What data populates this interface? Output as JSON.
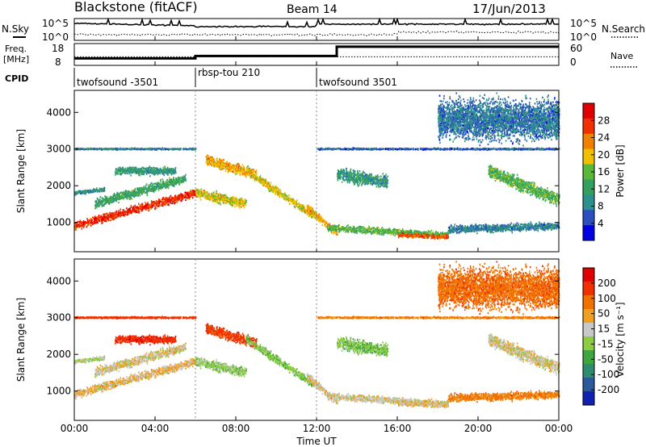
{
  "header": {
    "title": "Blackstone (fitACF)",
    "beam": "Beam 14",
    "date": "17/Jun/2013"
  },
  "top_panels": {
    "nsky_label": "N.Sky",
    "nsky_ticks": [
      "10^5",
      "10^0"
    ],
    "nsearch_label": "N.Search",
    "nsearch_ticks": [
      "10^5",
      "10^0"
    ],
    "freq_label": "Freq.",
    "freq_unit": "[MHz]",
    "freq_ticks": [
      "18",
      "8"
    ],
    "nave_label": "Nave",
    "nave_ticks": [
      "60",
      "0"
    ],
    "cpid_label": "CPID",
    "cpid_segments": [
      {
        "label": "twofsound -3501",
        "start_hour": 0,
        "end_hour": 6
      },
      {
        "label": "rbsp-tou 210",
        "start_hour": 6,
        "end_hour": 12
      },
      {
        "label": "twofsound 3501",
        "start_hour": 12,
        "end_hour": 24
      }
    ]
  },
  "xaxis": {
    "label": "Time UT",
    "ticks": [
      "00:00",
      "04:00",
      "08:00",
      "12:00",
      "16:00",
      "20:00",
      "00:00"
    ]
  },
  "power_panel": {
    "ylabel": "Slant Range [km]",
    "colorbar_label": "Power [dB]",
    "colorbar_ticks": [
      "28",
      "24",
      "20",
      "16",
      "12",
      "8",
      "4"
    ],
    "colors": [
      "#0000e0",
      "#2a50c0",
      "#2f8f8f",
      "#33a060",
      "#58b83a",
      "#f0c000",
      "#f08000",
      "#f03000",
      "#e00000"
    ]
  },
  "velocity_panel": {
    "ylabel": "Slant Range [km]",
    "colorbar_label": "Velocity [m s⁻¹]",
    "colorbar_ticks": [
      "200",
      "100",
      "50",
      "15",
      "-15",
      "-50",
      "-100",
      "-200"
    ],
    "colors": [
      "#1020b0",
      "#2d5a9a",
      "#2f8c70",
      "#3fa53f",
      "#8ccc40",
      "#c8c8c8",
      "#f0a020",
      "#f07000",
      "#f03000",
      "#e00000"
    ]
  },
  "chart_data": {
    "type": "heatmap",
    "title": "Blackstone (fitACF)",
    "x_unit": "hours UT",
    "xlim": [
      0,
      24
    ],
    "ylim": [
      200,
      4600
    ],
    "yticks": [
      1000,
      2000,
      3000,
      4000
    ],
    "ylabel": "Slant Range [km]",
    "xlabel": "Time UT",
    "power_range_dB": [
      0,
      30
    ],
    "velocity_range": [
      -250,
      250
    ],
    "scatter_features": [
      {
        "t_start": 0.0,
        "t_end": 6.0,
        "r_start": 900,
        "r_end": 1800,
        "thickness": 300,
        "power": 26,
        "velocity": -20
      },
      {
        "t_start": 0.0,
        "t_end": 1.5,
        "r_start": 1800,
        "r_end": 1900,
        "thickness": 150,
        "power": 9,
        "velocity": 15
      },
      {
        "t_start": 1.0,
        "t_end": 5.5,
        "r_start": 1500,
        "r_end": 2200,
        "thickness": 350,
        "power": 12,
        "velocity": -5
      },
      {
        "t_start": 6.0,
        "t_end": 8.5,
        "r_start": 1800,
        "r_end": 1500,
        "thickness": 400,
        "power": 18,
        "velocity": 30
      },
      {
        "t_start": 6.5,
        "t_end": 9.0,
        "r_start": 2700,
        "r_end": 2300,
        "thickness": 400,
        "power": 20,
        "velocity": -120
      },
      {
        "t_start": 8.5,
        "t_end": 11.8,
        "r_start": 2400,
        "r_end": 1200,
        "thickness": 300,
        "power": 18,
        "velocity": 40
      },
      {
        "t_start": 11.5,
        "t_end": 13.0,
        "r_start": 1400,
        "r_end": 700,
        "thickness": 300,
        "power": 20,
        "velocity": -10
      },
      {
        "t_start": 12.5,
        "t_end": 18.5,
        "r_start": 850,
        "r_end": 650,
        "thickness": 250,
        "power": 14,
        "velocity": -5
      },
      {
        "t_start": 16.0,
        "t_end": 18.5,
        "r_start": 650,
        "r_end": 600,
        "thickness": 150,
        "power": 24,
        "velocity": -15
      },
      {
        "t_start": 13.0,
        "t_end": 15.5,
        "r_start": 2300,
        "r_end": 2100,
        "thickness": 500,
        "power": 10,
        "velocity": 40
      },
      {
        "t_start": 12.0,
        "t_end": 24.0,
        "r_start": 3000,
        "r_end": 3000,
        "thickness": 60,
        "power": 6,
        "velocity": -60
      },
      {
        "t_start": 0.0,
        "t_end": 6.0,
        "r_start": 3000,
        "r_end": 3000,
        "thickness": 60,
        "power": 8,
        "velocity": -150
      },
      {
        "t_start": 18.5,
        "t_end": 24.0,
        "r_start": 800,
        "r_end": 900,
        "thickness": 300,
        "power": 8,
        "velocity": -60
      },
      {
        "t_start": 20.5,
        "t_end": 24.0,
        "r_start": 2400,
        "r_end": 1600,
        "thickness": 500,
        "power": 14,
        "velocity": -5
      },
      {
        "t_start": 18.0,
        "t_end": 24.0,
        "r_start": 3800,
        "r_end": 3800,
        "thickness": 1500,
        "power": 7,
        "velocity": -80
      },
      {
        "t_start": 2.0,
        "t_end": 5.0,
        "r_start": 2400,
        "r_end": 2400,
        "thickness": 300,
        "power": 10,
        "velocity": -180
      }
    ]
  }
}
